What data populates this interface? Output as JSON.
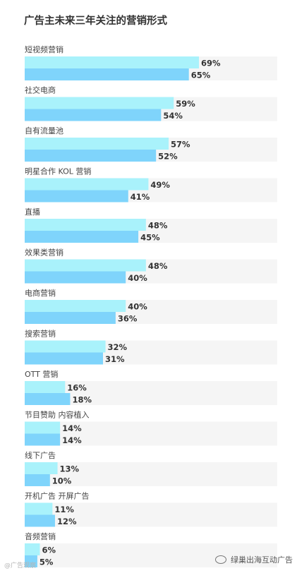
{
  "chart_data": {
    "type": "bar",
    "orientation": "horizontal",
    "title": "广告主未来三年关注的营销形式",
    "categories": [
      "短视频营销",
      "社交电商",
      "自有流量池",
      "明星合作 KOL 营销",
      "直播",
      "效果类营销",
      "电商营销",
      "搜索营销",
      "OTT 营销",
      "节目赞助 内容植入",
      "线下广告",
      "开机广告 开屏广告",
      "音频营销"
    ],
    "series": [
      {
        "values": [
          69,
          59,
          57,
          49,
          48,
          48,
          40,
          32,
          16,
          14,
          13,
          11,
          6
        ],
        "color": "#a9f2fb"
      },
      {
        "values": [
          65,
          54,
          52,
          41,
          45,
          40,
          36,
          31,
          18,
          14,
          10,
          12,
          5
        ],
        "color": "#7fd4fb"
      }
    ],
    "value_suffix": "%",
    "xlim": [
      0,
      100
    ],
    "grid": false
  },
  "watermarks": {
    "left": "@广告观察",
    "right": "绿巢出海互动广告"
  }
}
